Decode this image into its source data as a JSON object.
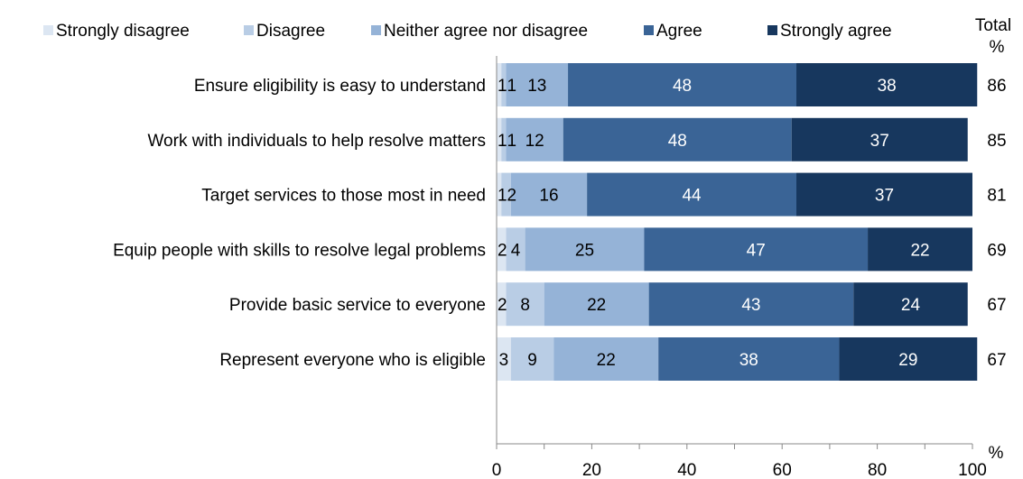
{
  "chart_data": {
    "type": "bar",
    "orientation": "horizontal",
    "stacked": true,
    "categories": [
      "Ensure eligibility is easy to understand",
      "Work with individuals to help resolve matters",
      "Target services to those most in need",
      "Equip people with skills to resolve legal problems",
      "Provide basic service to everyone",
      "Represent everyone who is eligible"
    ],
    "series": [
      {
        "name": "Strongly disagree",
        "color": "#dce6f2",
        "values": [
          1,
          1,
          1,
          2,
          2,
          3
        ]
      },
      {
        "name": "Disagree",
        "color": "#b9cde5",
        "values": [
          1,
          1,
          2,
          4,
          8,
          9
        ]
      },
      {
        "name": "Neither agree nor disagree",
        "color": "#95b3d7",
        "values": [
          13,
          12,
          16,
          25,
          22,
          22
        ]
      },
      {
        "name": "Agree",
        "color": "#3a6496",
        "values": [
          48,
          48,
          44,
          47,
          43,
          38
        ]
      },
      {
        "name": "Strongly agree",
        "color": "#17375e",
        "values": [
          38,
          37,
          37,
          22,
          24,
          29
        ]
      }
    ],
    "totals": {
      "header_line1": "Total",
      "header_line2": "%",
      "values": [
        86,
        85,
        81,
        69,
        67,
        67
      ]
    },
    "xlim": [
      0,
      100
    ],
    "xticks": [
      0,
      20,
      40,
      60,
      80,
      100
    ],
    "xunit": "%",
    "grid": false,
    "legend_position": "top"
  }
}
